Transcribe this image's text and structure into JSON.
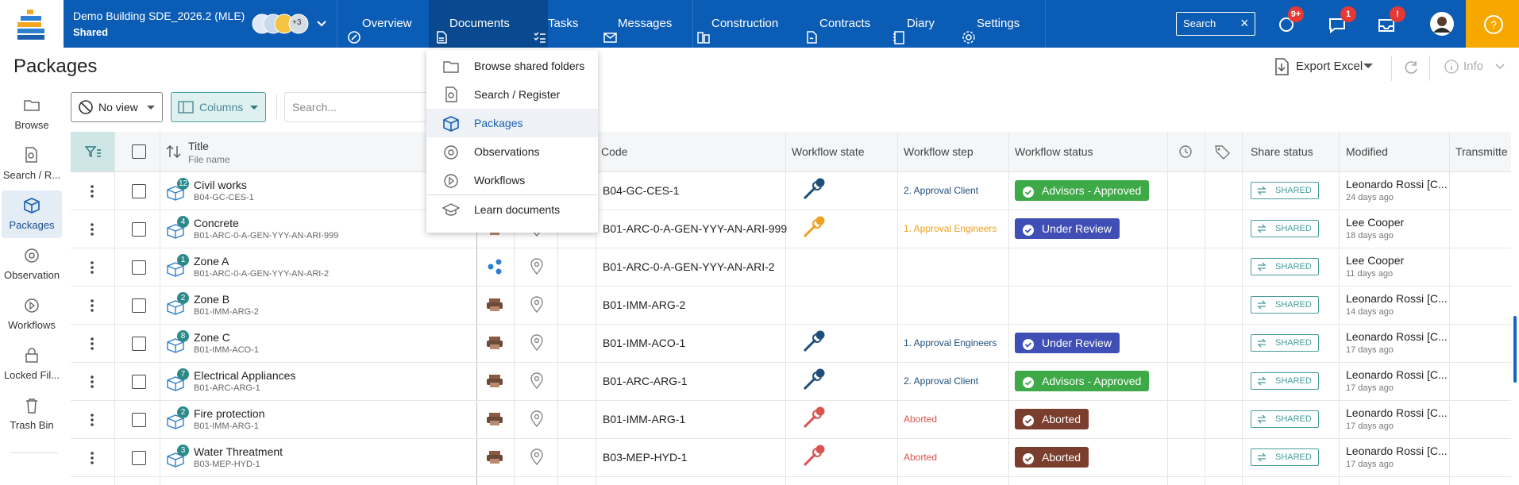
{
  "header": {
    "project": "Demo Building SDE_2026.2 (MLE)",
    "subtitle": "Shared",
    "avatar_more": "+3",
    "nav": [
      "Overview",
      "Documents",
      "Tasks",
      "Messages",
      "Construction",
      "Contracts",
      "Diary",
      "Settings"
    ],
    "nav_active": 1,
    "search": "Search",
    "badges": [
      "9+",
      "1",
      "!"
    ],
    "help": "?"
  },
  "page": {
    "title": "Packages",
    "export": "Export Excel",
    "info": "Info"
  },
  "sidebar": {
    "items": [
      "Browse",
      "Search / R...",
      "Packages",
      "Observation",
      "Workflows",
      "Locked Fil...",
      "Trash Bin"
    ],
    "active": 2
  },
  "toolbar": {
    "view": "No view",
    "columns": "Columns",
    "search_placeholder": "Search..."
  },
  "menu": {
    "items": [
      "Browse shared folders",
      "Search / Register",
      "Packages",
      "Observations",
      "Workflows",
      "Learn documents"
    ],
    "active": 2
  },
  "table": {
    "columns": {
      "title": "Title",
      "file_name": "File name",
      "code": "Code",
      "workflow_state": "Workflow state",
      "workflow_step": "Workflow step",
      "workflow_status": "Workflow status",
      "share_status": "Share status",
      "modified": "Modified",
      "transmittals": "Transmitte"
    },
    "rows": [
      {
        "count": 12,
        "title": "Civil works",
        "file": "B04-GC-CES-1",
        "code": "B04-GC-CES-1",
        "step": "2. Approval Client",
        "step_color": "#1f4e79",
        "status": "Advisors - Approved",
        "status_color": "#3daa47",
        "share": "SHARED",
        "modified_by": "Leonardo Rossi [C...",
        "modified_ago": "24 days ago"
      },
      {
        "count": 4,
        "title": "Concrete",
        "file": "B01-ARC-0-A-GEN-YYY-AN-ARI-999",
        "code": "B01-ARC-0-A-GEN-YYY-AN-ARI-999",
        "step": "1. Approval Engineers",
        "step_color": "#f0a020",
        "status": "Under Review",
        "status_color": "#3f4fb5",
        "share": "SHARED",
        "modified_by": "Lee Cooper",
        "modified_ago": "18 days ago"
      },
      {
        "count": 1,
        "title": "Zone A",
        "file": "B01-ARC-0-A-GEN-YYY-AN-ARI-2",
        "code": "B01-ARC-0-A-GEN-YYY-AN-ARI-2",
        "share": "SHARED",
        "modified_by": "Lee Cooper",
        "modified_ago": "11 days ago"
      },
      {
        "count": 2,
        "title": "Zone B",
        "file": "B01-IMM-ARG-2",
        "code": "B01-IMM-ARG-2",
        "share": "SHARED",
        "modified_by": "Leonardo Rossi [C...",
        "modified_ago": "14 days ago"
      },
      {
        "count": 8,
        "title": "Zone C",
        "file": "B01-IMM-ACO-1",
        "code": "B01-IMM-ACO-1",
        "step": "1. Approval Engineers",
        "step_color": "#1f4e79",
        "status": "Under Review",
        "status_color": "#3f4fb5",
        "share": "SHARED",
        "modified_by": "Leonardo Rossi [C...",
        "modified_ago": "17 days ago"
      },
      {
        "count": 7,
        "title": "Electrical Appliances",
        "file": "B01-ARC-ARG-1",
        "code": "B01-ARC-ARG-1",
        "step": "2. Approval Client",
        "step_color": "#1f4e79",
        "status": "Advisors - Approved",
        "status_color": "#3daa47",
        "share": "SHARED",
        "modified_by": "Leonardo Rossi [C...",
        "modified_ago": "17 days ago"
      },
      {
        "count": 2,
        "title": "Fire protection",
        "file": "B01-IMM-ARG-1",
        "code": "B01-IMM-ARG-1",
        "step": "Aborted",
        "step_color": "#d9534f",
        "status": "Aborted",
        "status_color": "#7a3e2e",
        "share": "SHARED",
        "modified_by": "Leonardo Rossi [C...",
        "modified_ago": "17 days ago"
      },
      {
        "count": 3,
        "title": "Water Threatment",
        "file": "B03-MEP-HYD-1",
        "code": "B03-MEP-HYD-1",
        "step": "Aborted",
        "step_color": "#d9534f",
        "status": "Aborted",
        "status_color": "#7a3e2e",
        "share": "SHARED",
        "modified_by": "Leonardo Rossi [C...",
        "modified_ago": "17 days ago"
      }
    ]
  }
}
